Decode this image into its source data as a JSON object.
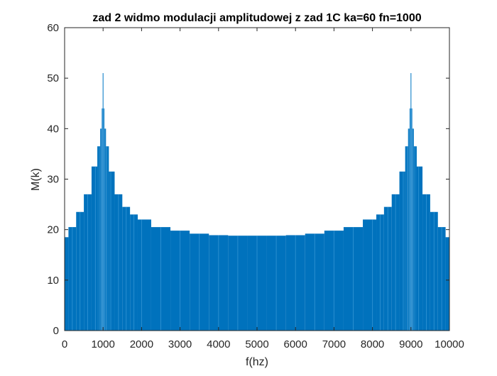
{
  "chart_data": {
    "type": "bar",
    "title": "zad 2 widmo modulacji amplitudowej z zad 1C ka=60 fn=1000",
    "xlabel": "f(hz)",
    "ylabel": "M(k)",
    "xlim": [
      0,
      10000
    ],
    "ylim": [
      0,
      60
    ],
    "xticks": [
      0,
      1000,
      2000,
      3000,
      4000,
      5000,
      6000,
      7000,
      8000,
      9000,
      10000
    ],
    "yticks": [
      0,
      10,
      20,
      30,
      40,
      50,
      60
    ],
    "grid": false,
    "legend": "none",
    "bar_color": "#0072BD",
    "bar_edge_color": "#4DA6E0",
    "x": [
      0,
      200,
      400,
      600,
      800,
      900,
      950,
      980,
      1000,
      1020,
      1050,
      1100,
      1200,
      1400,
      1600,
      1800,
      2000,
      2500,
      3000,
      3500,
      4000,
      4500,
      5000,
      5500,
      6000,
      6500,
      7000,
      7500,
      8000,
      8200,
      8400,
      8600,
      8800,
      8900,
      8950,
      8980,
      9000,
      9020,
      9050,
      9100,
      9200,
      9400,
      9600,
      9800,
      10000
    ],
    "values": [
      18.5,
      20.5,
      23.5,
      27.0,
      32.5,
      36.5,
      40.0,
      44.0,
      51.0,
      44.0,
      40.0,
      36.5,
      31.5,
      27.0,
      24.5,
      23.0,
      22.0,
      20.5,
      19.8,
      19.2,
      18.9,
      18.8,
      18.8,
      18.8,
      18.9,
      19.2,
      19.8,
      20.5,
      22.0,
      23.0,
      24.5,
      27.0,
      31.5,
      36.5,
      40.0,
      44.0,
      51.0,
      44.0,
      40.0,
      36.5,
      32.5,
      27.0,
      23.5,
      20.5,
      18.5
    ]
  }
}
